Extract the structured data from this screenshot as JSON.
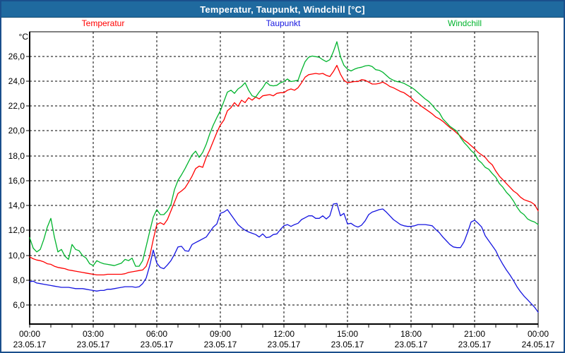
{
  "window": {
    "title": "Temperatur, Taupunkt, Windchill [°C]"
  },
  "colors": {
    "frame": "#1A4F8C",
    "titlebar_bg": "#1F6A9F",
    "titlebar_text": "#FFFFFF",
    "grid": "#000000",
    "tick_text": "#000000",
    "temperatur": "#FF0000",
    "taupunkt": "#1515E0",
    "windchill": "#00B42D"
  },
  "chart_data": {
    "type": "line",
    "title": "Temperatur, Taupunkt, Windchill [°C]",
    "ylabel": "°C",
    "xlabel": "",
    "grid": true,
    "legend_position": "top",
    "ylim": [
      4.5,
      28.0
    ],
    "xlim_hours": [
      0,
      24
    ],
    "sample_interval_minutes": 10,
    "y_ticks": [
      {
        "value": 6,
        "label": "6,0"
      },
      {
        "value": 8,
        "label": "8,0"
      },
      {
        "value": 10,
        "label": "10,0"
      },
      {
        "value": 12,
        "label": "12,0"
      },
      {
        "value": 14,
        "label": "14,0"
      },
      {
        "value": 16,
        "label": "16,0"
      },
      {
        "value": 18,
        "label": "18,0"
      },
      {
        "value": 20,
        "label": "20,0"
      },
      {
        "value": 22,
        "label": "22,0"
      },
      {
        "value": 24,
        "label": "24,0"
      },
      {
        "value": 26,
        "label": "26,0"
      }
    ],
    "x_ticks": [
      {
        "hour": 0,
        "time": "00:00",
        "date": "23.05.17"
      },
      {
        "hour": 3,
        "time": "03:00",
        "date": "23.05.17"
      },
      {
        "hour": 6,
        "time": "06:00",
        "date": "23.05.17"
      },
      {
        "hour": 9,
        "time": "09:00",
        "date": "23.05.17"
      },
      {
        "hour": 12,
        "time": "12:00",
        "date": "23.05.17"
      },
      {
        "hour": 15,
        "time": "15:00",
        "date": "23.05.17"
      },
      {
        "hour": 18,
        "time": "18:00",
        "date": "23.05.17"
      },
      {
        "hour": 21,
        "time": "21:00",
        "date": "23.05.17"
      },
      {
        "hour": 24,
        "time": "00:00",
        "date": "24.05.17"
      }
    ],
    "x_minor_tick_hours": 1,
    "series": [
      {
        "name": "Temperatur",
        "color": "#FF0000",
        "values": [
          9.9,
          9.75,
          9.65,
          9.6,
          9.5,
          9.35,
          9.3,
          9.15,
          9.05,
          9.0,
          8.95,
          8.85,
          8.8,
          8.75,
          8.7,
          8.65,
          8.6,
          8.55,
          8.5,
          8.45,
          8.45,
          8.45,
          8.5,
          8.5,
          8.5,
          8.5,
          8.5,
          8.55,
          8.65,
          8.7,
          8.75,
          8.8,
          8.85,
          9.15,
          9.95,
          11.3,
          12.5,
          12.65,
          12.5,
          12.9,
          13.6,
          14.3,
          15.0,
          15.2,
          15.45,
          15.9,
          16.4,
          17.0,
          17.2,
          17.1,
          17.9,
          18.5,
          19.2,
          19.9,
          20.5,
          20.9,
          21.65,
          21.9,
          22.3,
          22.0,
          22.5,
          22.3,
          22.7,
          22.5,
          22.75,
          22.6,
          22.85,
          22.9,
          22.95,
          22.85,
          23.05,
          23.1,
          23.1,
          23.3,
          23.4,
          23.3,
          23.5,
          23.9,
          24.35,
          24.55,
          24.6,
          24.65,
          24.6,
          24.65,
          24.5,
          24.4,
          24.8,
          25.3,
          24.6,
          24.1,
          23.9,
          23.95,
          24.0,
          24.0,
          24.15,
          24.1,
          23.95,
          23.8,
          23.8,
          23.85,
          23.95,
          23.8,
          23.6,
          23.5,
          23.35,
          23.2,
          23.1,
          22.9,
          22.7,
          22.4,
          22.25,
          22.0,
          21.8,
          21.6,
          21.4,
          21.15,
          21.0,
          20.8,
          20.55,
          20.3,
          20.1,
          19.85,
          19.6,
          19.3,
          19.1,
          18.85,
          18.6,
          18.3,
          18.1,
          17.9,
          17.55,
          17.3,
          16.8,
          16.4,
          16.1,
          15.8,
          15.5,
          15.2,
          15.0,
          14.7,
          14.5,
          14.4,
          14.3,
          14.1,
          13.6
        ]
      },
      {
        "name": "Taupunkt",
        "color": "#1515E0",
        "values": [
          7.9,
          7.95,
          7.8,
          7.75,
          7.7,
          7.65,
          7.6,
          7.55,
          7.5,
          7.45,
          7.45,
          7.45,
          7.4,
          7.35,
          7.35,
          7.35,
          7.3,
          7.25,
          7.2,
          7.15,
          7.2,
          7.2,
          7.3,
          7.3,
          7.35,
          7.4,
          7.45,
          7.5,
          7.5,
          7.5,
          7.45,
          7.5,
          7.75,
          8.2,
          9.2,
          10.45,
          9.4,
          9.05,
          8.95,
          9.25,
          9.6,
          10.1,
          10.7,
          10.75,
          10.4,
          10.35,
          10.9,
          11.05,
          11.2,
          11.35,
          11.5,
          11.9,
          12.3,
          12.55,
          13.4,
          13.5,
          13.7,
          13.3,
          12.9,
          12.5,
          12.25,
          12.05,
          11.9,
          11.8,
          11.7,
          11.5,
          11.75,
          11.45,
          11.5,
          11.7,
          11.75,
          12.1,
          12.4,
          12.5,
          12.35,
          12.5,
          12.6,
          12.9,
          13.05,
          13.2,
          13.2,
          13.0,
          13.0,
          13.2,
          12.95,
          13.2,
          14.15,
          14.2,
          13.2,
          13.4,
          12.55,
          12.6,
          12.4,
          12.3,
          12.45,
          12.8,
          13.3,
          13.5,
          13.6,
          13.7,
          13.75,
          13.5,
          13.2,
          12.9,
          12.7,
          12.5,
          12.4,
          12.35,
          12.35,
          12.4,
          12.5,
          12.5,
          12.5,
          12.45,
          12.4,
          12.1,
          11.85,
          11.5,
          11.2,
          10.9,
          10.7,
          10.65,
          10.65,
          11.1,
          11.85,
          12.7,
          12.85,
          12.6,
          12.3,
          11.6,
          11.2,
          10.8,
          10.4,
          9.8,
          9.3,
          8.85,
          8.45,
          8.0,
          7.5,
          7.1,
          6.75,
          6.45,
          6.15,
          5.85,
          5.45
        ]
      },
      {
        "name": "Windchill",
        "color": "#00B42D",
        "values": [
          11.45,
          10.6,
          10.3,
          10.5,
          11.3,
          12.3,
          13.0,
          11.5,
          10.3,
          10.5,
          9.95,
          9.7,
          10.9,
          10.5,
          10.4,
          10.0,
          9.8,
          9.35,
          9.2,
          9.6,
          9.45,
          9.35,
          9.3,
          9.25,
          9.2,
          9.3,
          9.4,
          9.7,
          9.6,
          9.8,
          9.15,
          9.15,
          9.6,
          10.75,
          11.95,
          13.1,
          13.7,
          13.3,
          13.3,
          13.6,
          14.1,
          15.3,
          16.05,
          16.5,
          17.0,
          17.55,
          18.1,
          18.4,
          17.9,
          18.3,
          18.95,
          19.8,
          20.5,
          21.1,
          21.65,
          22.4,
          23.15,
          23.3,
          23.05,
          23.4,
          23.6,
          23.9,
          23.3,
          22.85,
          22.75,
          23.15,
          23.5,
          23.95,
          23.7,
          23.65,
          23.7,
          23.9,
          24.0,
          24.2,
          24.0,
          24.05,
          24.1,
          24.9,
          25.6,
          25.95,
          26.05,
          26.0,
          25.95,
          25.75,
          25.6,
          25.75,
          26.4,
          27.2,
          26.0,
          25.3,
          25.0,
          24.85,
          25.0,
          25.1,
          25.15,
          25.25,
          25.3,
          25.2,
          24.95,
          24.9,
          24.75,
          24.5,
          24.25,
          24.1,
          24.0,
          23.95,
          23.85,
          23.7,
          23.55,
          23.35,
          23.1,
          22.85,
          22.6,
          22.4,
          22.1,
          21.75,
          21.5,
          21.0,
          20.7,
          20.4,
          20.2,
          20.0,
          19.5,
          19.1,
          18.8,
          18.45,
          18.2,
          17.7,
          17.45,
          17.1,
          16.95,
          16.6,
          16.3,
          15.8,
          15.5,
          15.1,
          14.8,
          14.4,
          13.9,
          13.5,
          13.3,
          12.95,
          12.8,
          12.7,
          12.5
        ]
      }
    ]
  }
}
